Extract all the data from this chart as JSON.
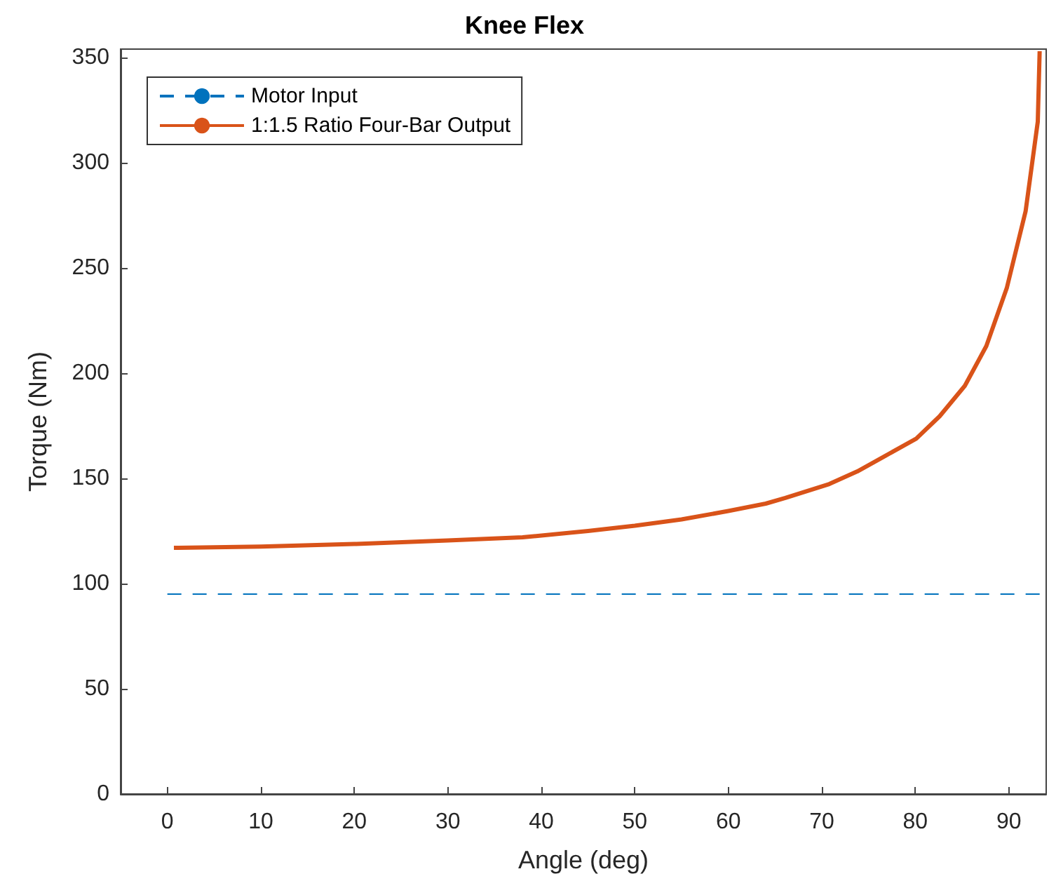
{
  "chart_data": {
    "type": "line",
    "title": "Knee Flex",
    "xlabel": "Angle (deg)",
    "ylabel": "Torque (Nm)",
    "xlim": [
      -5,
      94
    ],
    "xticks": [
      0,
      10,
      20,
      30,
      40,
      50,
      60,
      70,
      80,
      90
    ],
    "ylim": [
      0,
      354
    ],
    "yticks": [
      0,
      50,
      100,
      150,
      200,
      250,
      300,
      350
    ],
    "grid": false,
    "legend": "top left",
    "marker": "none",
    "series": [
      {
        "name": "Motor Input",
        "color": "#0072bd",
        "line_style": "dashed",
        "x": [
          0,
          94
        ],
        "values": [
          95,
          95
        ]
      },
      {
        "name": "1:1.5 Ratio Four-Bar Output",
        "color": "#d95319",
        "line_style": "solid",
        "x": [
          0.7,
          10,
          20,
          30,
          38,
          45,
          50,
          55,
          60,
          64,
          66.1,
          70.8,
          73.8,
          76.8,
          80.1,
          82.6,
          85.3,
          87.6,
          89.8,
          91.8,
          93.1,
          93.3
        ],
        "values": [
          117,
          117.6,
          118.8,
          120.5,
          122,
          125,
          127.5,
          130.5,
          134.5,
          138,
          140.7,
          147.3,
          153.3,
          160.7,
          168.9,
          179.5,
          194,
          212.9,
          240.7,
          277,
          319.5,
          353
        ]
      }
    ]
  }
}
